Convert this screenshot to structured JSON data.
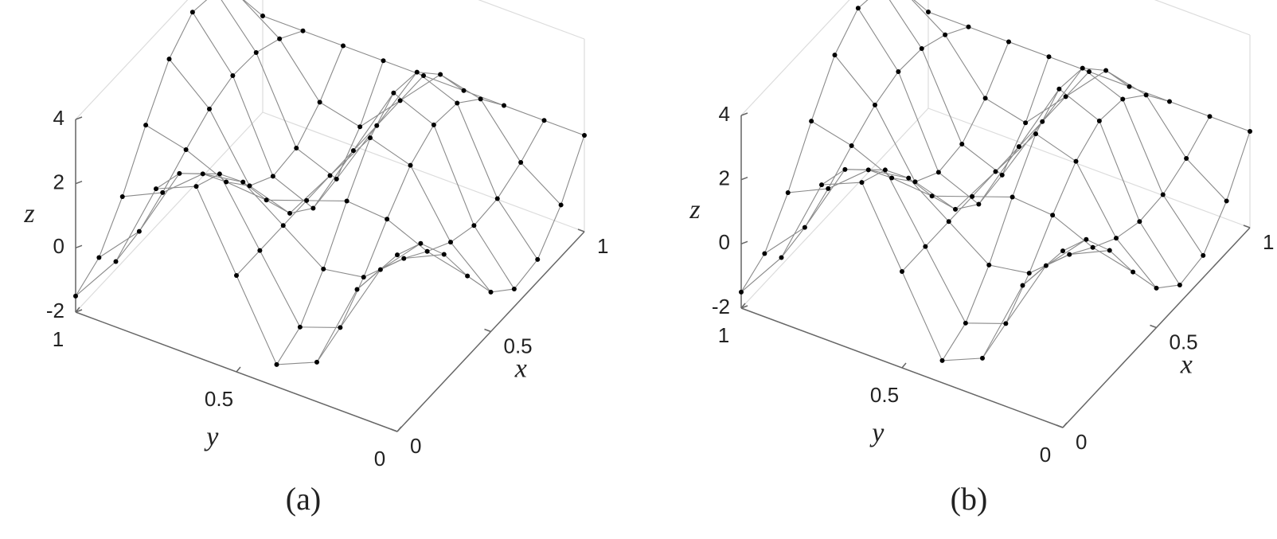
{
  "chart_data": [
    {
      "type": "surface",
      "caption": "(a)",
      "xlabel": "x",
      "ylabel": "y",
      "zlabel": "z",
      "x": [
        0,
        0.125,
        0.25,
        0.375,
        0.5,
        0.625,
        0.75,
        0.875,
        1
      ],
      "y": [
        0,
        0.125,
        0.25,
        0.375,
        0.5,
        0.625,
        0.75,
        0.875,
        1
      ],
      "z": [
        [
          3.5,
          1.96,
          -0.77,
          -1.31,
          1,
          3.31,
          2.77,
          0.04,
          -1.5
        ],
        [
          3.08,
          1.8,
          -0.47,
          -0.92,
          1,
          2.92,
          2.47,
          0.2,
          -1.08
        ],
        [
          1.96,
          1.37,
          0.32,
          0.11,
          1,
          1.89,
          1.68,
          0.63,
          0.04
        ],
        [
          0.51,
          0.81,
          1.35,
          1.45,
          1,
          0.55,
          0.65,
          1.19,
          1.49
        ],
        [
          -0.77,
          0.32,
          2.25,
          2.64,
          1,
          -0.64,
          -0.25,
          1.68,
          2.77
        ],
        [
          -1.45,
          0.06,
          2.73,
          3.26,
          1,
          -1.26,
          -0.73,
          1.94,
          3.45
        ],
        [
          -1.31,
          0.12,
          2.63,
          3.13,
          1,
          -1.13,
          -0.63,
          1.88,
          3.31
        ],
        [
          -0.39,
          0.47,
          1.98,
          2.28,
          1,
          -0.28,
          0.02,
          1.53,
          2.39
        ],
        [
          1,
          1,
          1,
          1,
          1,
          1,
          1,
          1,
          1
        ]
      ],
      "xlim": [
        0,
        1
      ],
      "ylim": [
        0,
        1
      ],
      "zlim": [
        -2,
        4
      ],
      "xticks": [
        0,
        0.5,
        1
      ],
      "yticks": [
        0,
        0.5,
        1
      ],
      "zticks": [
        -2,
        0,
        2,
        4
      ],
      "markers": true,
      "mesh_color": "#8a8a8a",
      "marker_color": "#000000"
    },
    {
      "type": "surface",
      "caption": "(b)",
      "xlabel": "x",
      "ylabel": "y",
      "zlabel": "z",
      "x": [
        0,
        0.125,
        0.25,
        0.375,
        0.5,
        0.625,
        0.75,
        0.875,
        1
      ],
      "y": [
        0,
        0.125,
        0.25,
        0.375,
        0.5,
        0.625,
        0.75,
        0.875,
        1
      ],
      "z": [
        [
          3.5,
          1.96,
          -0.77,
          -1.31,
          1,
          3.31,
          2.77,
          0.04,
          -1.5
        ],
        [
          3.08,
          1.8,
          -0.47,
          -0.92,
          1,
          2.92,
          2.47,
          0.2,
          -1.08
        ],
        [
          1.96,
          1.37,
          0.32,
          0.11,
          1,
          1.89,
          1.68,
          0.63,
          0.04
        ],
        [
          0.51,
          0.81,
          1.35,
          1.45,
          1,
          0.55,
          0.65,
          1.19,
          1.49
        ],
        [
          -0.77,
          0.32,
          2.25,
          2.64,
          1,
          -0.64,
          -0.25,
          1.68,
          2.77
        ],
        [
          -1.45,
          0.06,
          2.73,
          3.26,
          1,
          -1.26,
          -0.73,
          1.94,
          3.45
        ],
        [
          -1.31,
          0.12,
          2.63,
          3.13,
          1,
          -1.13,
          -0.63,
          1.88,
          3.31
        ],
        [
          -0.39,
          0.47,
          1.98,
          2.28,
          1,
          -0.28,
          0.02,
          1.53,
          2.39
        ],
        [
          1,
          1,
          1,
          1,
          1,
          1,
          1,
          1,
          1
        ]
      ],
      "xlim": [
        0,
        1
      ],
      "ylim": [
        0,
        1
      ],
      "zlim": [
        -2,
        4
      ],
      "xticks": [
        0,
        0.5,
        1
      ],
      "yticks": [
        0,
        0.5,
        1
      ],
      "zticks": [
        -2,
        0,
        2,
        4
      ],
      "markers": true,
      "mesh_color": "#8a8a8a",
      "marker_color": "#000000"
    }
  ]
}
